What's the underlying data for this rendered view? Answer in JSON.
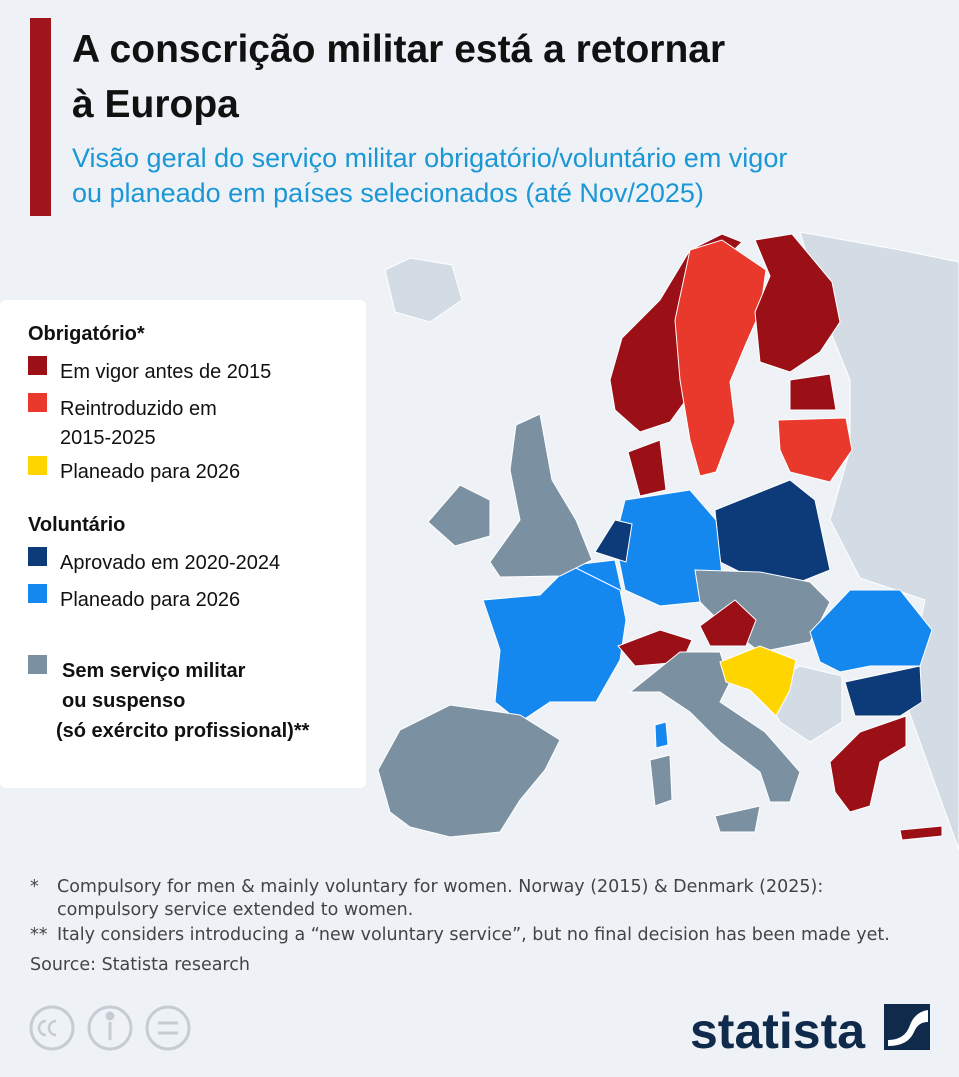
{
  "header": {
    "title_lines": [
      "A conscrição militar está a retornar",
      "à Europa"
    ],
    "subtitle_lines": [
      "Visão geral do serviço militar obrigatório/voluntário em vigor",
      "ou planeado em países selecionados (até Nov/2025)"
    ]
  },
  "legend": {
    "groups": [
      {
        "title": "Obrigatório*",
        "items": [
          {
            "lines": [
              "Em vigor antes de 2015"
            ],
            "color": "#9b0f16"
          },
          {
            "lines": [
              "Reintroduzido em",
              "2015-2025"
            ],
            "color": "#e8392c"
          },
          {
            "lines": [
              "Planeado para 2026"
            ],
            "color": "#ffd500"
          }
        ]
      },
      {
        "title": "Voluntário",
        "items": [
          {
            "lines": [
              "Aprovado em 2020-2024"
            ],
            "color": "#0d3b7a"
          },
          {
            "lines": [
              "Planeado para 2026"
            ],
            "color": "#1588f0"
          }
        ]
      },
      {
        "items": [
          {
            "lines": [
              "Sem serviço militar",
              "ou suspenso",
              "(só exército profissional)**"
            ],
            "color": "#7b91a1"
          }
        ]
      }
    ]
  },
  "footnotes": [
    {
      "marker": "*",
      "lines": [
        "Compulsory for men & mainly voluntary for women. Norway (2015) & Denmark (2025):",
        "compulsory service extended to women."
      ]
    },
    {
      "marker": "**",
      "lines": [
        "Italy considers introducing a “new voluntary service”, but no final decision has been made yet."
      ]
    }
  ],
  "source": "Source: Statista research",
  "brand": "statista"
}
